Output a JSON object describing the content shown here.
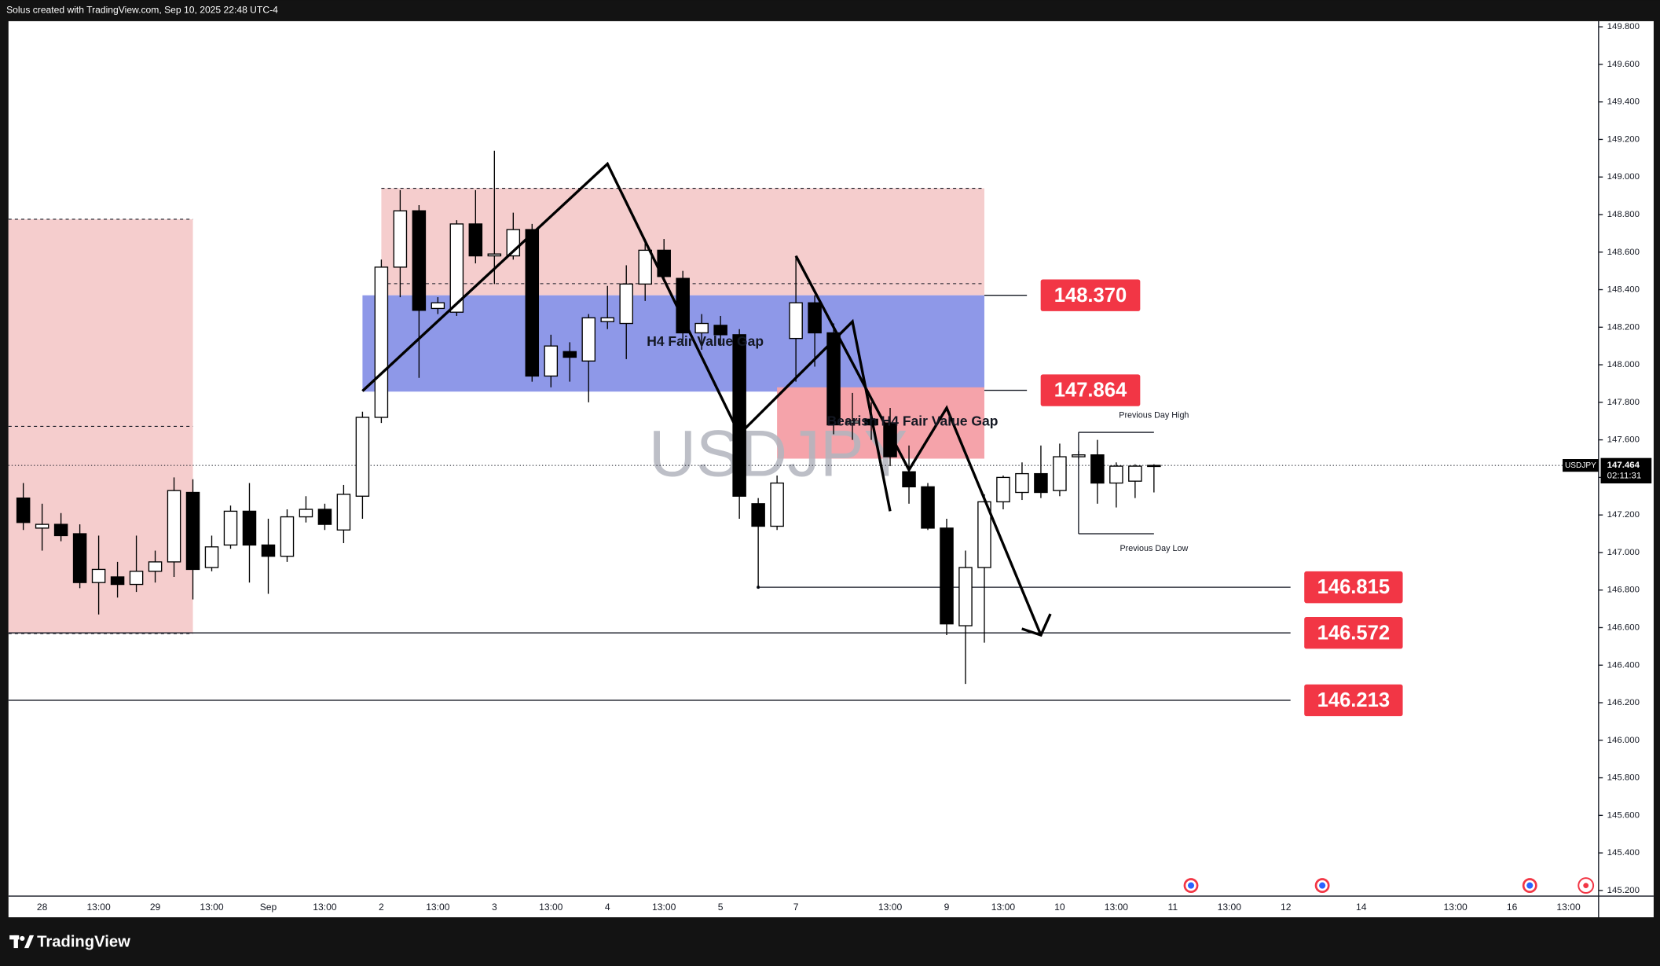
{
  "header": "Solus created with TradingView.com, Sep 10, 2025 22:48 UTC-4",
  "footer": "TradingView",
  "chart_data": {
    "type": "candlestick",
    "symbol": "USDJPY",
    "categories": [
      null,
      "28",
      null,
      null,
      "13:00",
      null,
      null,
      "29",
      null,
      null,
      "13:00",
      null,
      null,
      "Sep",
      null,
      null,
      "13:00",
      null,
      null,
      "2",
      null,
      null,
      "13:00",
      null,
      null,
      "3",
      null,
      null,
      "13:00",
      null,
      null,
      "4",
      null,
      null,
      "13:00",
      null,
      null,
      "5",
      null,
      null,
      null,
      "7",
      null,
      null,
      null,
      null,
      "13:00",
      null,
      null,
      "9",
      null,
      null,
      "13:00",
      null,
      null,
      "10",
      null,
      null,
      "13:00",
      null,
      null,
      "11",
      null,
      null,
      "13:00",
      null,
      null,
      "12",
      null,
      null,
      null,
      "14",
      null,
      null,
      null,
      null,
      "13:00",
      null,
      null,
      "16",
      null,
      null,
      "13:00",
      null
    ],
    "open": [
      147.29,
      147.13,
      147.15,
      147.1,
      146.84,
      146.87,
      146.83,
      146.9,
      146.95,
      147.32,
      146.92,
      147.04,
      147.22,
      147.04,
      146.98,
      147.19,
      147.23,
      147.12,
      147.3,
      147.72,
      148.52,
      148.82,
      148.3,
      148.28,
      148.75,
      148.58,
      148.58,
      148.72,
      147.94,
      148.07,
      148.02,
      148.23,
      148.22,
      148.43,
      148.61,
      148.46,
      148.17,
      148.21,
      148.16,
      147.26,
      147.14,
      148.14,
      148.33,
      148.17,
      147.69,
      147.71,
      147.69,
      147.43,
      147.35,
      147.13,
      146.61,
      146.92,
      147.27,
      147.32,
      147.42,
      147.33,
      147.51,
      147.52,
      147.37,
      147.38,
      147.46,
      null,
      null,
      null,
      null,
      null,
      null,
      null,
      null,
      null,
      null,
      null,
      null,
      null,
      null,
      null,
      null,
      null,
      null,
      null,
      null,
      null,
      null,
      null
    ],
    "high": [
      147.37,
      147.26,
      147.21,
      147.15,
      147.09,
      146.95,
      147.09,
      147.01,
      147.4,
      147.39,
      147.09,
      147.25,
      147.37,
      147.18,
      147.23,
      147.3,
      147.26,
      147.36,
      147.75,
      148.56,
      148.93,
      148.85,
      148.36,
      148.77,
      148.93,
      149.14,
      148.81,
      148.75,
      148.16,
      148.12,
      148.27,
      148.42,
      148.53,
      148.67,
      148.67,
      148.5,
      148.27,
      148.26,
      148.19,
      147.29,
      147.41,
      148.58,
      148.37,
      148.22,
      147.85,
      147.8,
      147.77,
      147.57,
      147.37,
      147.18,
      147.01,
      147.31,
      147.41,
      147.48,
      147.57,
      147.58,
      147.54,
      147.6,
      147.48,
      147.47,
      147.47,
      null,
      null,
      null,
      null,
      null,
      null,
      null,
      null,
      null,
      null,
      null,
      null,
      null,
      null,
      null,
      null,
      null,
      null,
      null,
      null,
      null,
      null,
      null
    ],
    "low": [
      147.12,
      147.01,
      147.06,
      146.81,
      146.67,
      146.76,
      146.79,
      146.84,
      146.87,
      146.75,
      146.9,
      147.02,
      146.84,
      146.78,
      146.95,
      147.16,
      147.12,
      147.05,
      147.18,
      147.69,
      148.36,
      147.93,
      148.27,
      148.26,
      148.54,
      148.43,
      148.56,
      147.91,
      147.88,
      147.91,
      147.8,
      148.19,
      148.03,
      148.34,
      148.44,
      148.13,
      148.08,
      148.11,
      147.18,
      146.81,
      147.12,
      147.91,
      147.99,
      147.63,
      147.6,
      147.6,
      147.46,
      147.26,
      147.12,
      146.56,
      146.3,
      146.52,
      147.23,
      147.28,
      147.29,
      147.3,
      147.5,
      147.26,
      147.24,
      147.29,
      147.32,
      null,
      null,
      null,
      null,
      null,
      null,
      null,
      null,
      null,
      null,
      null,
      null,
      null,
      null,
      null,
      null,
      null,
      null,
      null,
      null,
      null,
      null,
      null
    ],
    "close": [
      147.16,
      147.15,
      147.09,
      146.84,
      146.91,
      146.83,
      146.9,
      146.95,
      147.33,
      146.91,
      147.03,
      147.22,
      147.04,
      146.98,
      147.19,
      147.23,
      147.15,
      147.31,
      147.72,
      148.52,
      148.82,
      148.29,
      148.33,
      148.75,
      148.58,
      148.59,
      148.72,
      147.94,
      148.1,
      148.04,
      148.25,
      148.25,
      148.43,
      148.61,
      148.47,
      148.17,
      148.22,
      148.16,
      147.3,
      147.14,
      147.37,
      148.33,
      148.17,
      147.68,
      147.7,
      147.68,
      147.51,
      147.35,
      147.13,
      146.62,
      146.92,
      147.27,
      147.4,
      147.42,
      147.32,
      147.51,
      147.52,
      147.37,
      147.46,
      147.46,
      147.464,
      null,
      null,
      null,
      null,
      null,
      null,
      null,
      null,
      null,
      null,
      null,
      null,
      null,
      null,
      null,
      null,
      null,
      null,
      null,
      null,
      null,
      null,
      null
    ],
    "colors": {
      "up": "#ffffff",
      "down": "#000000",
      "wick": "#000000"
    },
    "ylim": [
      145.17,
      149.83
    ],
    "yticks": [
      {
        "value": 145.2,
        "label": "145.200"
      },
      {
        "value": 145.4,
        "label": "145.400"
      },
      {
        "value": 145.6,
        "label": "145.600"
      },
      {
        "value": 145.8,
        "label": "145.800"
      },
      {
        "value": 146.0,
        "label": "146.000"
      },
      {
        "value": 146.2,
        "label": "146.200"
      },
      {
        "value": 146.4,
        "label": "146.400"
      },
      {
        "value": 146.6,
        "label": "146.600"
      },
      {
        "value": 146.8,
        "label": "146.800"
      },
      {
        "value": 147.0,
        "label": "147.000"
      },
      {
        "value": 147.2,
        "label": "147.200"
      },
      {
        "value": 147.4,
        "label": "147.400"
      },
      {
        "value": 147.6,
        "label": "147.600"
      },
      {
        "value": 147.8,
        "label": "147.800"
      },
      {
        "value": 148.0,
        "label": "148.000"
      },
      {
        "value": 148.2,
        "label": "148.200"
      },
      {
        "value": 148.4,
        "label": "148.400"
      },
      {
        "value": 148.6,
        "label": "148.600"
      },
      {
        "value": 148.8,
        "label": "148.800"
      },
      {
        "value": 149.0,
        "label": "149.000"
      },
      {
        "value": 149.2,
        "label": "149.200"
      },
      {
        "value": 149.4,
        "label": "149.400"
      },
      {
        "value": 149.6,
        "label": "149.600"
      },
      {
        "value": 149.8,
        "label": "149.800"
      }
    ],
    "last_price": {
      "value": 147.464,
      "label": "147.464"
    },
    "countdown": "02:11:31",
    "zones": [
      {
        "top": 148.775,
        "bottom": 146.568,
        "start": -1,
        "end": 9,
        "color": "#f5cdcd",
        "dashes": [
          148.775,
          147.672,
          146.568
        ]
      },
      {
        "top": 148.94,
        "bottom": 148.37,
        "start": 19,
        "end": 51,
        "color": "#f5cdcd",
        "dashes": [
          148.94,
          148.432
        ]
      },
      {
        "top": 148.37,
        "bottom": 147.857,
        "start": 18,
        "end": 51,
        "color": "#8e98e8",
        "label": "H4 Fair Value Gap"
      },
      {
        "top": 147.88,
        "bottom": 147.5,
        "start": 40,
        "end": 51,
        "color": "#f5a3aa",
        "label": "Bearish H4 Fair Value Gap"
      }
    ],
    "levels": [
      {
        "value": 148.37,
        "label": "148.370",
        "start": 51,
        "color": "#f23645"
      },
      {
        "value": 147.864,
        "label": "147.864",
        "start": 51,
        "color": "#f23645"
      },
      {
        "value": 146.815,
        "label": "146.815",
        "start": 39,
        "color": "#f23645"
      },
      {
        "value": 146.572,
        "label": "146.572",
        "start": -1,
        "color": "#f23645"
      },
      {
        "value": 146.213,
        "label": "146.213",
        "start": -1,
        "color": "#f23645"
      }
    ],
    "previous_day": {
      "high": 147.64,
      "low": 147.1,
      "start": 56,
      "end": 60,
      "high_label": "Previous Day High",
      "low_label": "Previous Day Low"
    },
    "trend_lines": [
      {
        "x": [
          18,
          31,
          38,
          44,
          46
        ],
        "y": [
          147.86,
          149.07,
          147.63,
          148.23,
          147.22
        ]
      },
      {
        "x": [
          41,
          47,
          49,
          54
        ],
        "y": [
          148.58,
          147.44,
          147.77,
          146.56
        ]
      }
    ]
  }
}
